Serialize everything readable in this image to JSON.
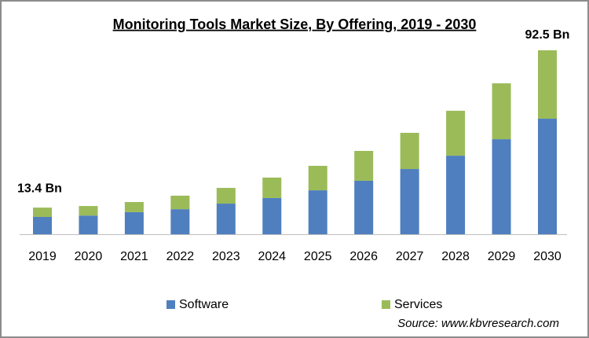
{
  "chart_data": {
    "type": "stacked_bar",
    "title": "Monitoring Tools Market Size, By Offering, 2019 - 2030",
    "categories": [
      "2019",
      "2020",
      "2021",
      "2022",
      "2023",
      "2024",
      "2025",
      "2026",
      "2027",
      "2028",
      "2029",
      "2030"
    ],
    "series": [
      {
        "name": "Software",
        "color": "#4f7fbf",
        "values": [
          8.7,
          9.4,
          11.1,
          12.6,
          15.4,
          18.2,
          22.1,
          26.9,
          32.8,
          39.5,
          47.8,
          58.1
        ]
      },
      {
        "name": "Services",
        "color": "#9bbb59",
        "values": [
          4.7,
          4.8,
          5.1,
          6.8,
          7.9,
          10.3,
          12.3,
          15.0,
          18.2,
          22.6,
          28.1,
          34.4
        ]
      }
    ],
    "annotations": [
      "13.4 Bn",
      "92.5 Bn"
    ],
    "source": "Source: www.kbvresearch.com"
  }
}
